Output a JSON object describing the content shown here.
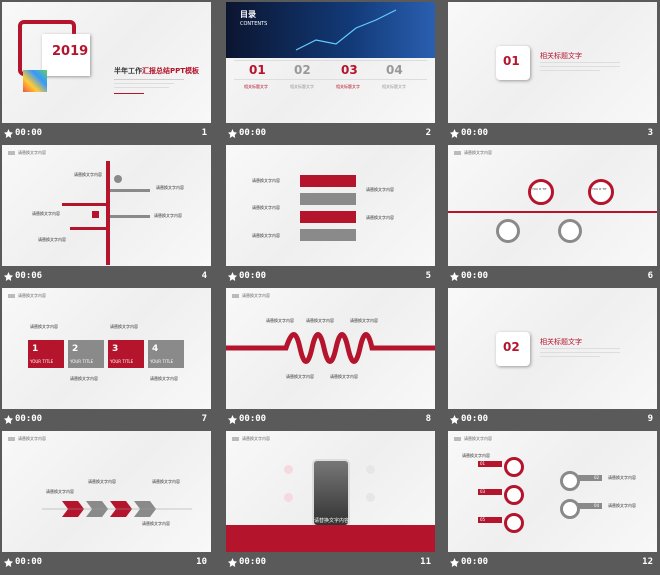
{
  "slides": [
    {
      "num": "1",
      "time": "00:00",
      "year": "2019",
      "title_a": "半年工作",
      "title_b": "汇报总结PPT模板"
    },
    {
      "num": "2",
      "time": "00:00",
      "toc_title": "目录",
      "toc_sub": "CONTENTS",
      "items": [
        "01",
        "02",
        "03",
        "04"
      ],
      "item_label": "相关标题文字"
    },
    {
      "num": "3",
      "time": "00:00",
      "badge": "01",
      "heading": "相关标题文字"
    },
    {
      "num": "4",
      "time": "00:06",
      "header": "请替换文字内容",
      "label": "请替换文字内容"
    },
    {
      "num": "5",
      "time": "00:00",
      "label": "请替换文字内容"
    },
    {
      "num": "6",
      "time": "00:00",
      "header": "请替换文字内容",
      "bubble": "YOU R TIT"
    },
    {
      "num": "7",
      "time": "00:00",
      "header": "请替换文字内容",
      "label": "请替换文字内容",
      "steps": [
        {
          "n": "1",
          "t": "YOUR TITLE"
        },
        {
          "n": "2",
          "t": "YOUR TITLE"
        },
        {
          "n": "3",
          "t": "YOUR TITLE"
        },
        {
          "n": "4",
          "t": "YOUR TITLE"
        }
      ]
    },
    {
      "num": "8",
      "time": "00:00",
      "header": "请替换文字内容",
      "label": "请替换文字内容"
    },
    {
      "num": "9",
      "time": "00:00",
      "badge": "02",
      "heading": "相关标题文字"
    },
    {
      "num": "10",
      "time": "00:00",
      "header": "请替换文字内容",
      "label": "请替换文字内容"
    },
    {
      "num": "11",
      "time": "00:00",
      "header": "请替换文字内容",
      "caption": "请替换文字内容"
    },
    {
      "num": "12",
      "time": "00:00",
      "header": "请替换文字内容",
      "label": "请替换文字内容",
      "nums": [
        "01",
        "02",
        "03",
        "04",
        "05"
      ]
    }
  ],
  "colors": {
    "accent": "#b5142d",
    "grey": "#8a8a8a",
    "background": "#5a5a5a"
  },
  "icons": {
    "footer": "star-icon"
  }
}
